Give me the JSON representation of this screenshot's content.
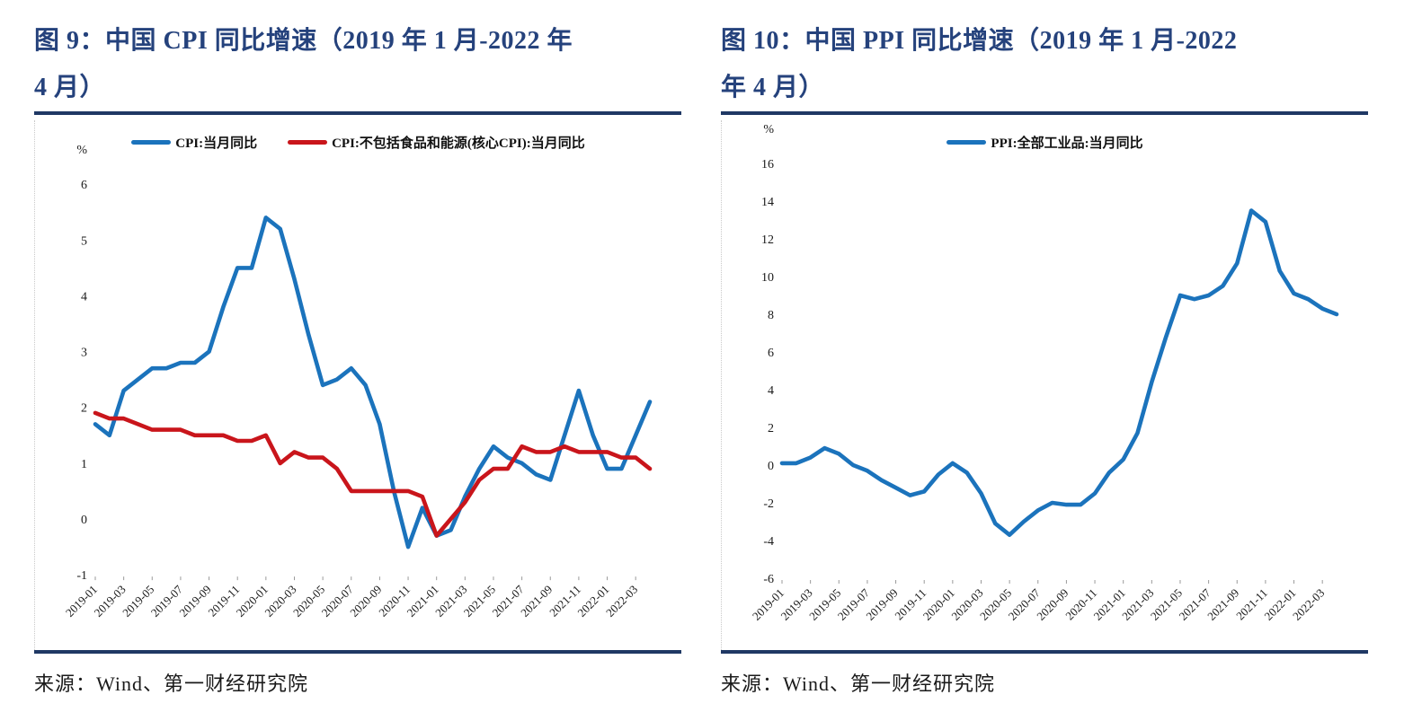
{
  "colors": {
    "title_navy": "#25427C",
    "rule_navy": "#1F3864",
    "cpi_blue": "#1B73BC",
    "core_cpi_red": "#C9151B",
    "ppi_blue": "#1B73BC",
    "axis_text": "#1a1a1a"
  },
  "panels": [
    {
      "title_lines": [
        "图 9：中国 CPI 同比增速（2019 年 1 月-2022 年",
        "4 月）"
      ],
      "source": "来源：Wind、第一财经研究院"
    },
    {
      "title_lines": [
        "图 10：中国 PPI 同比增速（2019 年 1 月-2022",
        "年 4 月）"
      ],
      "source": "来源：Wind、第一财经研究院"
    }
  ],
  "chart_data": [
    {
      "type": "line",
      "title": "图9：中国CPI同比增速（2019年1月-2022年4月）",
      "xlabel": "",
      "ylabel": "%",
      "ylim": [
        -1,
        6
      ],
      "yticks": [
        6,
        5,
        4,
        3,
        2,
        1,
        0,
        -1
      ],
      "grid": false,
      "legend_position": "top",
      "xtick_every": 2,
      "x": [
        "2019-01",
        "2019-02",
        "2019-03",
        "2019-04",
        "2019-05",
        "2019-06",
        "2019-07",
        "2019-08",
        "2019-09",
        "2019-10",
        "2019-11",
        "2019-12",
        "2020-01",
        "2020-02",
        "2020-03",
        "2020-04",
        "2020-05",
        "2020-06",
        "2020-07",
        "2020-08",
        "2020-09",
        "2020-10",
        "2020-11",
        "2020-12",
        "2021-01",
        "2021-02",
        "2021-03",
        "2021-04",
        "2021-05",
        "2021-06",
        "2021-07",
        "2021-08",
        "2021-09",
        "2021-10",
        "2021-11",
        "2021-12",
        "2022-01",
        "2022-02",
        "2022-03",
        "2022-04"
      ],
      "series": [
        {
          "name": "CPI:当月同比",
          "color": "#1B73BC",
          "values": [
            1.7,
            1.5,
            2.3,
            2.5,
            2.7,
            2.7,
            2.8,
            2.8,
            3.0,
            3.8,
            4.5,
            4.5,
            5.4,
            5.2,
            4.3,
            3.3,
            2.4,
            2.5,
            2.7,
            2.4,
            1.7,
            0.5,
            -0.5,
            0.2,
            -0.3,
            -0.2,
            0.4,
            0.9,
            1.3,
            1.1,
            1.0,
            0.8,
            0.7,
            1.5,
            2.3,
            1.5,
            0.9,
            0.9,
            1.5,
            2.1
          ]
        },
        {
          "name": "CPI:不包括食品和能源(核心CPI):当月同比",
          "color": "#C9151B",
          "values": [
            1.9,
            1.8,
            1.8,
            1.7,
            1.6,
            1.6,
            1.6,
            1.5,
            1.5,
            1.5,
            1.4,
            1.4,
            1.5,
            1.0,
            1.2,
            1.1,
            1.1,
            0.9,
            0.5,
            0.5,
            0.5,
            0.5,
            0.5,
            0.4,
            -0.3,
            0.0,
            0.3,
            0.7,
            0.9,
            0.9,
            1.3,
            1.2,
            1.2,
            1.3,
            1.2,
            1.2,
            1.2,
            1.1,
            1.1,
            0.9
          ]
        }
      ]
    },
    {
      "type": "line",
      "title": "图10：中国PPI同比增速（2019年1月-2022年4月）",
      "xlabel": "",
      "ylabel": "%",
      "ylim": [
        -6,
        16
      ],
      "yticks": [
        16,
        14,
        12,
        10,
        8,
        6,
        4,
        2,
        0,
        -2,
        -4,
        -6
      ],
      "grid": false,
      "legend_position": "top",
      "xtick_every": 2,
      "x": [
        "2019-01",
        "2019-02",
        "2019-03",
        "2019-04",
        "2019-05",
        "2019-06",
        "2019-07",
        "2019-08",
        "2019-09",
        "2019-10",
        "2019-11",
        "2019-12",
        "2020-01",
        "2020-02",
        "2020-03",
        "2020-04",
        "2020-05",
        "2020-06",
        "2020-07",
        "2020-08",
        "2020-09",
        "2020-10",
        "2020-11",
        "2020-12",
        "2021-01",
        "2021-02",
        "2021-03",
        "2021-04",
        "2021-05",
        "2021-06",
        "2021-07",
        "2021-08",
        "2021-09",
        "2021-10",
        "2021-11",
        "2021-12",
        "2022-01",
        "2022-02",
        "2022-03",
        "2022-04"
      ],
      "series": [
        {
          "name": "PPI:全部工业品:当月同比",
          "color": "#1B73BC",
          "values": [
            0.1,
            0.1,
            0.4,
            0.9,
            0.6,
            0.0,
            -0.3,
            -0.8,
            -1.2,
            -1.6,
            -1.4,
            -0.5,
            0.1,
            -0.4,
            -1.5,
            -3.1,
            -3.7,
            -3.0,
            -2.4,
            -2.0,
            -2.1,
            -2.1,
            -1.5,
            -0.4,
            0.3,
            1.7,
            4.4,
            6.8,
            9.0,
            8.8,
            9.0,
            9.5,
            10.7,
            13.5,
            12.9,
            10.3,
            9.1,
            8.8,
            8.3,
            8.0
          ]
        }
      ]
    }
  ]
}
